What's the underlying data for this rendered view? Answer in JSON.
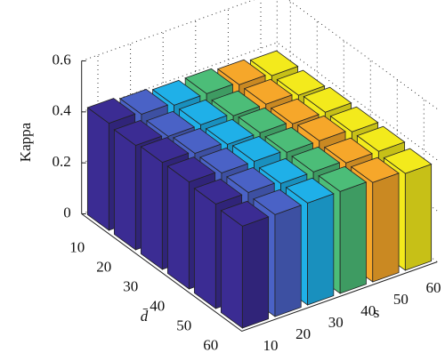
{
  "chart_data": {
    "type": "bar3",
    "zlabel": "Kappa",
    "xlabel": "d̄",
    "ylabel": "s",
    "xcategories": [
      10,
      20,
      30,
      40,
      50,
      60
    ],
    "ycategories": [
      10,
      20,
      30,
      40,
      50,
      60
    ],
    "colors": [
      "#3b2c93",
      "#4a62c6",
      "#1fb0e8",
      "#4cbd78",
      "#f6a72a",
      "#f3ea1c"
    ],
    "values": [
      [
        0.42,
        0.41,
        0.4,
        0.4,
        0.39,
        0.38
      ],
      [
        0.41,
        0.4,
        0.4,
        0.39,
        0.39,
        0.38
      ],
      [
        0.42,
        0.41,
        0.4,
        0.4,
        0.39,
        0.39
      ],
      [
        0.42,
        0.41,
        0.41,
        0.4,
        0.4,
        0.39
      ],
      [
        0.41,
        0.41,
        0.4,
        0.4,
        0.39,
        0.39
      ],
      [
        0.4,
        0.4,
        0.4,
        0.4,
        0.39,
        0.38
      ]
    ],
    "zlim": [
      0,
      0.6
    ],
    "zticks": [
      0,
      0.2,
      0.4,
      0.6
    ],
    "grid": true
  }
}
